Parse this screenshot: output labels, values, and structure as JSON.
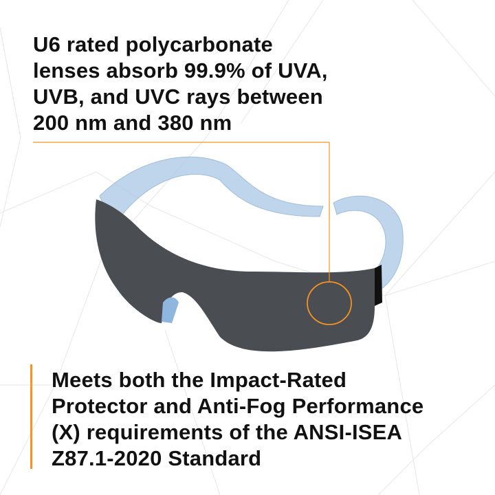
{
  "top_callout": {
    "lines": [
      "U6 rated polycarbonate",
      "lenses absorb 99.9% of UVA,",
      "UVB, and UVC rays between",
      "200 nm and 380 nm"
    ]
  },
  "bottom_callout": {
    "lines": [
      "Meets both the Impact-Rated",
      "Protector and Anti-Fog Performance",
      "(X) requirements of the ANSI-ISEA",
      "Z87.1-2020 Standard"
    ]
  },
  "colors": {
    "accent": "#f7931e",
    "lens": "#4a4d52",
    "temple": "#a9c8e6",
    "text": "#111111"
  }
}
